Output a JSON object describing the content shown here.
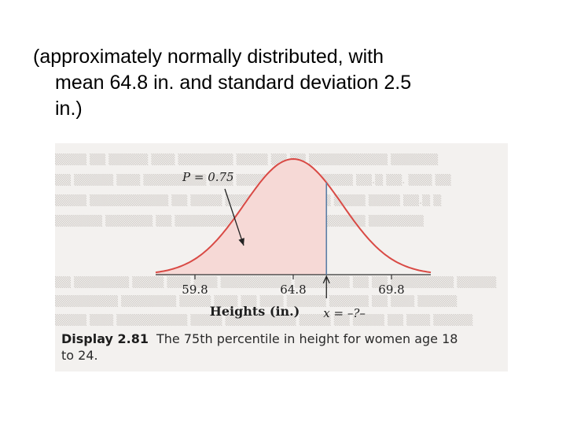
{
  "slide": {
    "lines": [
      "(approximately normally distributed, with",
      "mean 64.8 in. and standard deviation 2.5",
      "in.)"
    ]
  },
  "figure": {
    "p_label": "P = 0.75",
    "x_label": "x = –?–",
    "xlabel": "Heights (in.)",
    "tick_labels": [
      "59.8",
      "64.8",
      "69.8"
    ],
    "caption_number": "Display 2.81",
    "caption_text_1": "The 75th percentile in height for women age 18",
    "caption_text_2": "to 24.",
    "colors": {
      "curve": "#d94a45",
      "shade": "#f6d9d6",
      "marker": "#5b7fa6",
      "panel": "#f3f1ef"
    }
  },
  "chart_data": {
    "type": "area",
    "title": "",
    "xlabel": "Heights (in.)",
    "ylabel": "",
    "distribution": "normal",
    "mean": 64.8,
    "sd": 2.5,
    "xlim": [
      57.8,
      71.8
    ],
    "ticks": [
      59.8,
      64.8,
      69.8
    ],
    "shaded_region": {
      "from": 57.8,
      "to": 66.49
    },
    "shaded_probability": 0.75,
    "marker_x": 66.49,
    "annotations": [
      "P = 0.75",
      "x = –?–"
    ],
    "grid": false,
    "legend": "none"
  }
}
